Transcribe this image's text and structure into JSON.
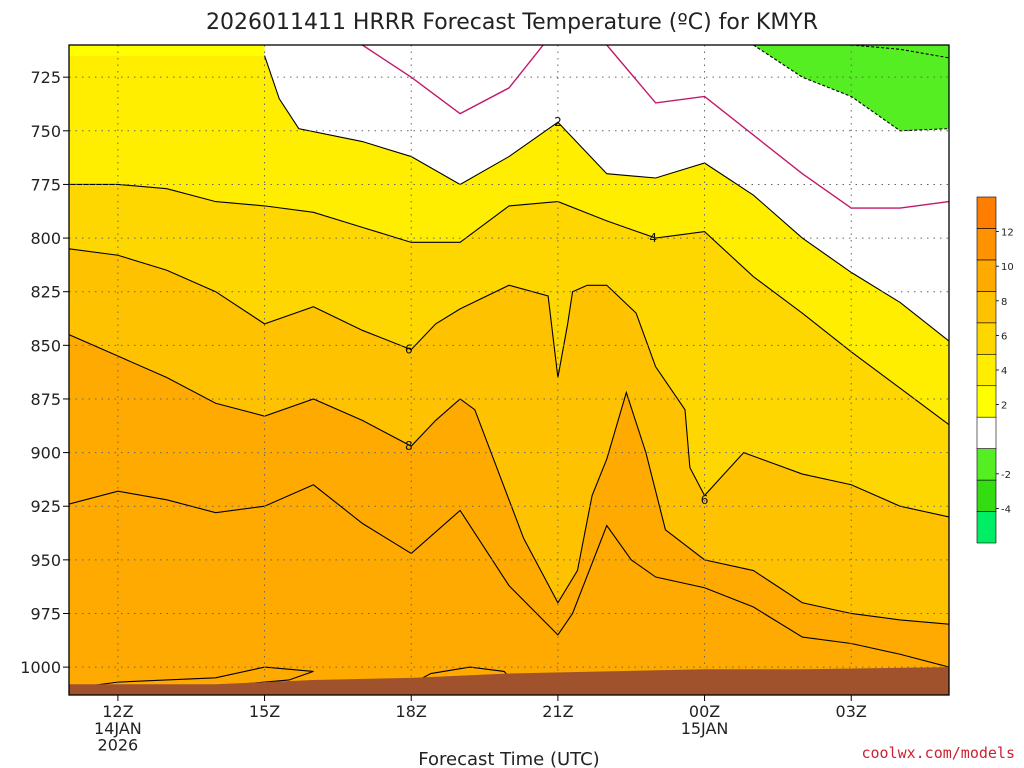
{
  "chart_data": {
    "type": "heatmap",
    "title": "2026011411 HRRR Forecast Temperature (ºC) for KMYR",
    "xlabel": "Forecast Time (UTC)",
    "ylabel": "",
    "credit": "coolwx.com/models",
    "x_ticks": [
      {
        "hour": 0,
        "lines": [
          "12Z",
          "14JAN",
          "2026"
        ]
      },
      {
        "hour": 3,
        "lines": [
          "15Z"
        ]
      },
      {
        "hour": 6,
        "lines": [
          "18Z"
        ]
      },
      {
        "hour": 9,
        "lines": [
          "21Z"
        ]
      },
      {
        "hour": 12,
        "lines": [
          "00Z",
          "15JAN"
        ]
      },
      {
        "hour": 15,
        "lines": [
          "03Z"
        ]
      }
    ],
    "xlim": [
      -1,
      17
    ],
    "y_ticks": [
      725,
      750,
      775,
      800,
      825,
      850,
      875,
      900,
      925,
      950,
      975,
      1000
    ],
    "ylim": [
      1013,
      710
    ],
    "colorbar": {
      "levels": [
        -6,
        -4,
        -2,
        0,
        2,
        4,
        6,
        8,
        10,
        12,
        14
      ],
      "colors": [
        "#00ee66",
        "#33dd11",
        "#55ee22",
        "#ffffff",
        "#ffff00",
        "#ffee00",
        "#ffd700",
        "#ffc200",
        "#ffaa00",
        "#ff9200",
        "#ff7d00"
      ],
      "tick_labels": [
        "-4",
        "-2",
        "2",
        "4",
        "6",
        "8",
        "10",
        "12"
      ],
      "tick_values": [
        -4,
        -2,
        2,
        4,
        6,
        8,
        10,
        12
      ]
    },
    "contour_labels": [
      {
        "text": "2",
        "hour": 9.0,
        "pressure": 746
      },
      {
        "text": "4",
        "hour": 10.95,
        "pressure": 800
      },
      {
        "text": "6",
        "hour": 5.95,
        "pressure": 852
      },
      {
        "text": "8",
        "hour": 5.95,
        "pressure": 897
      },
      {
        "text": "6",
        "hour": 12.0,
        "pressure": 922
      }
    ],
    "isotherms": [
      {
        "level": 14,
        "points": [
          [
            7.0,
            1008
          ],
          [
            8.1,
            1007
          ],
          [
            7.9,
            1002
          ],
          [
            7.2,
            1000
          ],
          [
            6.4,
            1003
          ],
          [
            6.0,
            1008
          ]
        ]
      },
      {
        "level": 10,
        "points": [
          [
            -1.0,
            924
          ],
          [
            0.0,
            918
          ],
          [
            1.0,
            922
          ],
          [
            2.0,
            928
          ],
          [
            3.0,
            925
          ],
          [
            4.0,
            915
          ],
          [
            5.0,
            933
          ],
          [
            6.0,
            947
          ],
          [
            7.0,
            927
          ],
          [
            8.0,
            962
          ],
          [
            9.0,
            985
          ],
          [
            9.3,
            975
          ],
          [
            10.0,
            934
          ],
          [
            10.5,
            950
          ],
          [
            11.0,
            958
          ],
          [
            12.0,
            963
          ],
          [
            13.0,
            972
          ],
          [
            14.0,
            986
          ],
          [
            15.0,
            989
          ],
          [
            16.0,
            994
          ],
          [
            17.0,
            1000
          ]
        ]
      },
      {
        "level": 8,
        "points": [
          [
            -1.0,
            845
          ],
          [
            0.0,
            855
          ],
          [
            1.0,
            865
          ],
          [
            2.0,
            877
          ],
          [
            3.0,
            883
          ],
          [
            4.0,
            875
          ],
          [
            5.0,
            885
          ],
          [
            6.0,
            897
          ],
          [
            6.5,
            885
          ],
          [
            7.0,
            875
          ],
          [
            7.3,
            880
          ],
          [
            7.8,
            910
          ],
          [
            8.3,
            940
          ],
          [
            9.0,
            970
          ],
          [
            9.4,
            955
          ],
          [
            9.7,
            920
          ],
          [
            10.0,
            903
          ],
          [
            10.4,
            872
          ],
          [
            10.8,
            900
          ],
          [
            11.2,
            936
          ],
          [
            12.0,
            950
          ],
          [
            13.0,
            955
          ],
          [
            14.0,
            970
          ],
          [
            15.0,
            975
          ],
          [
            16.0,
            978
          ],
          [
            17.0,
            980
          ]
        ]
      },
      {
        "level": 6,
        "points": [
          [
            -1.0,
            805
          ],
          [
            0.0,
            808
          ],
          [
            1.0,
            815
          ],
          [
            2.0,
            825
          ],
          [
            3.0,
            840
          ],
          [
            4.0,
            832
          ],
          [
            5.0,
            843
          ],
          [
            6.0,
            852
          ],
          [
            6.5,
            840
          ],
          [
            7.0,
            833
          ],
          [
            8.0,
            822
          ],
          [
            8.8,
            827
          ],
          [
            9.0,
            865
          ],
          [
            9.2,
            840
          ],
          [
            9.3,
            825
          ],
          [
            9.6,
            822
          ],
          [
            10.0,
            822
          ],
          [
            10.6,
            835
          ],
          [
            11.0,
            860
          ],
          [
            11.6,
            880
          ],
          [
            11.7,
            907
          ],
          [
            12.0,
            920
          ],
          [
            12.4,
            910
          ],
          [
            12.8,
            900
          ],
          [
            14.0,
            910
          ],
          [
            15.0,
            915
          ],
          [
            16.0,
            925
          ],
          [
            17.0,
            930
          ]
        ]
      },
      {
        "level": 4,
        "points": [
          [
            -1.0,
            775
          ],
          [
            0.0,
            775
          ],
          [
            1.0,
            777
          ],
          [
            2.0,
            783
          ],
          [
            3.0,
            785
          ],
          [
            4.0,
            788
          ],
          [
            5.0,
            795
          ],
          [
            6.0,
            802
          ],
          [
            7.0,
            802
          ],
          [
            8.0,
            785
          ],
          [
            9.0,
            783
          ],
          [
            10.0,
            792
          ],
          [
            11.0,
            800
          ],
          [
            12.0,
            797
          ],
          [
            13.0,
            818
          ],
          [
            14.0,
            835
          ],
          [
            15.0,
            853
          ],
          [
            16.0,
            870
          ],
          [
            17.0,
            887
          ]
        ]
      },
      {
        "level": 2,
        "points": [
          [
            3.0,
            715
          ],
          [
            3.3,
            735
          ],
          [
            3.7,
            749
          ],
          [
            5.0,
            755
          ],
          [
            6.0,
            762
          ],
          [
            7.0,
            775
          ],
          [
            8.0,
            762
          ],
          [
            9.0,
            746
          ],
          [
            10.0,
            770
          ],
          [
            11.0,
            772
          ],
          [
            12.0,
            765
          ],
          [
            13.0,
            780
          ],
          [
            14.0,
            800
          ],
          [
            15.0,
            816
          ],
          [
            16.0,
            830
          ],
          [
            17.0,
            848
          ]
        ]
      },
      {
        "level": 0,
        "points": [
          [
            8.7,
            710
          ],
          [
            8.0,
            730
          ],
          [
            7.0,
            742
          ],
          [
            6.0,
            725
          ],
          [
            5.0,
            710
          ]
        ]
      },
      {
        "level": 0.5,
        "points": [
          [
            10.0,
            710
          ],
          [
            11.0,
            737
          ],
          [
            12.0,
            734
          ],
          [
            13.0,
            752
          ],
          [
            14.0,
            770
          ],
          [
            15.0,
            786
          ],
          [
            16.0,
            786
          ],
          [
            17.0,
            783
          ]
        ]
      },
      {
        "level": -2,
        "points": [
          [
            13.0,
            710
          ],
          [
            14.0,
            725
          ],
          [
            15.0,
            734
          ],
          [
            16.0,
            750
          ],
          [
            17.0,
            749
          ]
        ]
      },
      {
        "level": -4,
        "points": [
          [
            15.0,
            710
          ],
          [
            16.0,
            712
          ],
          [
            17.0,
            716
          ]
        ]
      },
      {
        "level": 12,
        "points": [
          [
            -1.0,
            1010
          ],
          [
            0.0,
            1007
          ],
          [
            2.0,
            1005
          ],
          [
            3.0,
            1000
          ],
          [
            4.0,
            1002
          ],
          [
            3.5,
            1006
          ],
          [
            2.0,
            1009
          ],
          [
            0.0,
            1010
          ]
        ]
      }
    ],
    "ground": {
      "color": "#a0522d",
      "surface": [
        [
          -1.0,
          1008
        ],
        [
          2.0,
          1008
        ],
        [
          4.0,
          1006
        ],
        [
          6.0,
          1005
        ],
        [
          8.0,
          1003
        ],
        [
          10.0,
          1002
        ],
        [
          12.0,
          1001
        ],
        [
          14.0,
          1001
        ],
        [
          17.0,
          1000
        ]
      ]
    }
  }
}
